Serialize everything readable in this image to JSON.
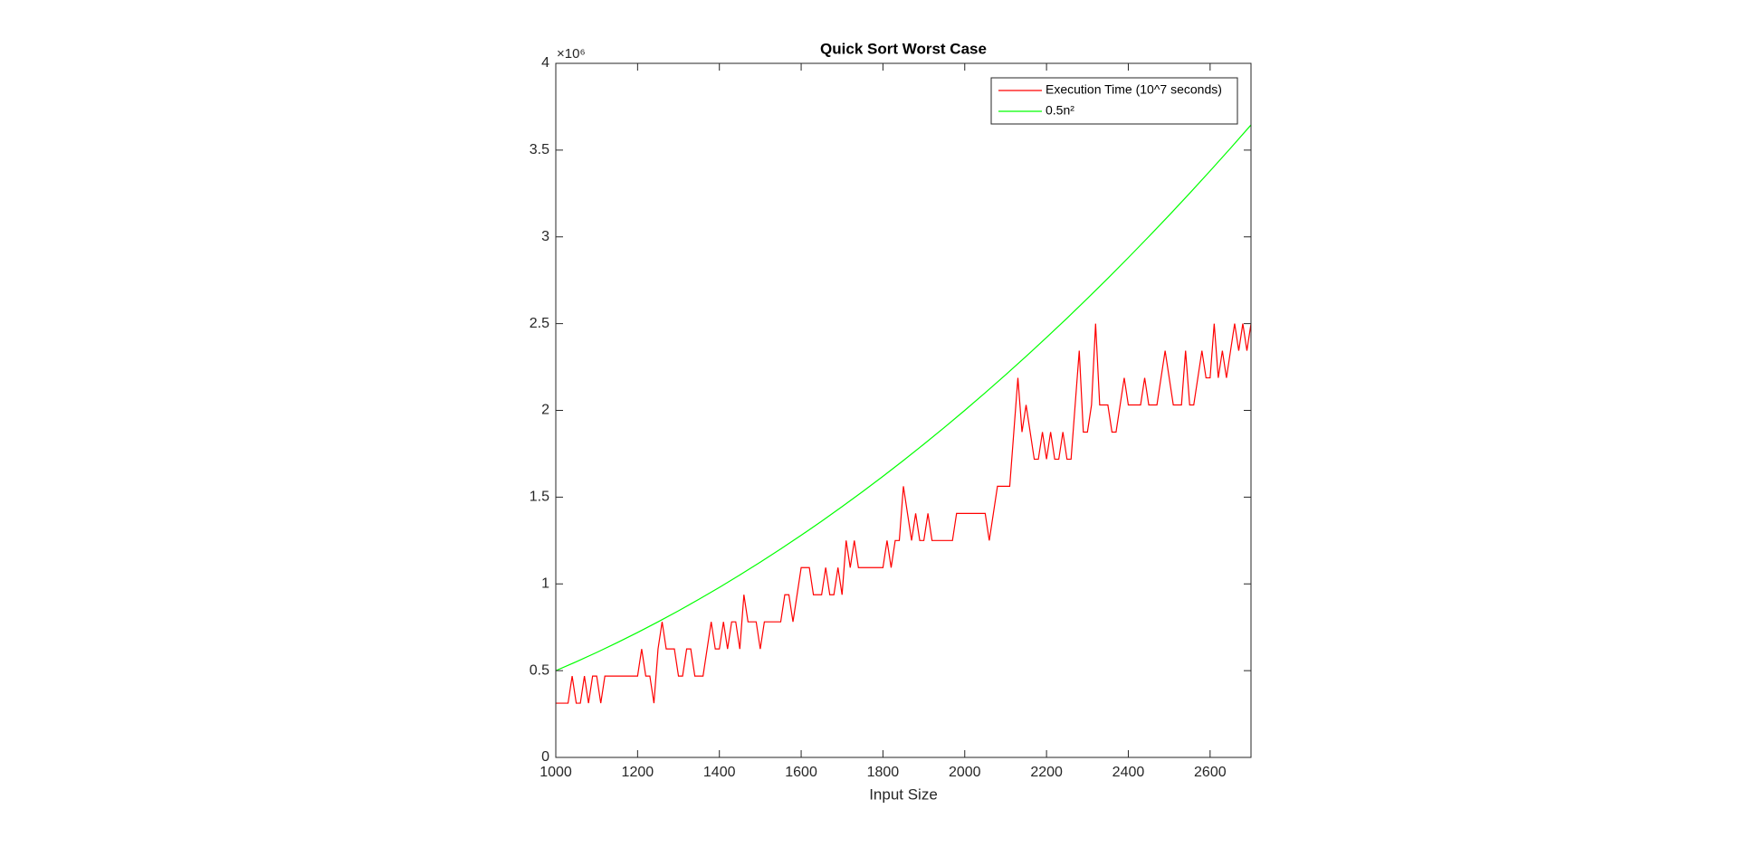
{
  "chart_data": {
    "type": "line",
    "title": "Quick Sort Worst Case",
    "xlabel": "Input Size",
    "y_exponent_label": "×10⁶",
    "xlim": [
      1000,
      2700
    ],
    "ylim": [
      0,
      4000000
    ],
    "xticks": [
      1000,
      1200,
      1400,
      1600,
      1800,
      2000,
      2200,
      2400,
      2600
    ],
    "yticks": [
      0,
      {
        "value": 500000,
        "label": "0.5"
      },
      {
        "value": 1000000,
        "label": "1"
      },
      {
        "value": 1500000,
        "label": "1.5"
      },
      {
        "value": 2000000,
        "label": "2"
      },
      {
        "value": 2500000,
        "label": "2.5"
      },
      {
        "value": 3000000,
        "label": "3"
      },
      {
        "value": 3500000,
        "label": "3.5"
      },
      {
        "value": 4000000,
        "label": "4"
      }
    ],
    "grid": false,
    "legend": "upper right",
    "series": [
      {
        "name": "Execution Time (10^7 seconds)",
        "color": "#ff0000",
        "x": [
          1000,
          1010,
          1020,
          1030,
          1040,
          1050,
          1060,
          1070,
          1080,
          1090,
          1100,
          1110,
          1120,
          1130,
          1140,
          1150,
          1160,
          1170,
          1180,
          1190,
          1200,
          1210,
          1220,
          1230,
          1240,
          1250,
          1260,
          1270,
          1280,
          1290,
          1300,
          1310,
          1320,
          1330,
          1340,
          1350,
          1360,
          1370,
          1380,
          1390,
          1400,
          1410,
          1420,
          1430,
          1440,
          1450,
          1460,
          1470,
          1480,
          1490,
          1500,
          1510,
          1520,
          1530,
          1540,
          1550,
          1560,
          1570,
          1580,
          1590,
          1600,
          1610,
          1620,
          1630,
          1640,
          1650,
          1660,
          1670,
          1680,
          1690,
          1700,
          1710,
          1720,
          1730,
          1740,
          1750,
          1760,
          1770,
          1780,
          1790,
          1800,
          1810,
          1820,
          1830,
          1840,
          1850,
          1860,
          1870,
          1880,
          1890,
          1900,
          1910,
          1920,
          1930,
          1940,
          1950,
          1960,
          1970,
          1980,
          1990,
          2000,
          2010,
          2020,
          2030,
          2040,
          2050,
          2060,
          2070,
          2080,
          2090,
          2100,
          2110,
          2120,
          2130,
          2140,
          2150,
          2160,
          2170,
          2180,
          2190,
          2200,
          2210,
          2220,
          2230,
          2240,
          2250,
          2260,
          2270,
          2280,
          2290,
          2300,
          2310,
          2320,
          2330,
          2340,
          2350,
          2360,
          2370,
          2380,
          2390,
          2400,
          2410,
          2420,
          2430,
          2440,
          2450,
          2460,
          2470,
          2480,
          2490,
          2500,
          2510,
          2520,
          2530,
          2540,
          2550,
          2560,
          2570,
          2580,
          2590,
          2600,
          2610,
          2620,
          2630,
          2640,
          2650,
          2660,
          2670,
          2680,
          2690,
          2700
        ],
        "values": [
          312500,
          312500,
          312500,
          312500,
          468750,
          312500,
          312500,
          468750,
          312500,
          468750,
          468750,
          312500,
          468750,
          468750,
          468750,
          468750,
          468750,
          468750,
          468750,
          468750,
          468750,
          625000,
          468750,
          468750,
          312500,
          625000,
          781250,
          625000,
          625000,
          625000,
          468750,
          468750,
          625000,
          625000,
          468750,
          468750,
          468750,
          625000,
          781250,
          625000,
          625000,
          781250,
          625000,
          781250,
          781250,
          625000,
          937500,
          781250,
          781250,
          781250,
          625000,
          781250,
          781250,
          781250,
          781250,
          781250,
          937500,
          937500,
          781250,
          937500,
          1093750,
          1093750,
          1093750,
          937500,
          937500,
          937500,
          1093750,
          937500,
          937500,
          1093750,
          937500,
          1250000,
          1093750,
          1250000,
          1093750,
          1093750,
          1093750,
          1093750,
          1093750,
          1093750,
          1093750,
          1250000,
          1093750,
          1250000,
          1250000,
          1562500,
          1406250,
          1250000,
          1406250,
          1250000,
          1250000,
          1406250,
          1250000,
          1250000,
          1250000,
          1250000,
          1250000,
          1250000,
          1406250,
          1406250,
          1406250,
          1406250,
          1406250,
          1406250,
          1406250,
          1406250,
          1250000,
          1406250,
          1562500,
          1562500,
          1562500,
          1562500,
          1875000,
          2187500,
          1875000,
          2031250,
          1875000,
          1718750,
          1718750,
          1875000,
          1718750,
          1875000,
          1718750,
          1718750,
          1875000,
          1718750,
          1718750,
          2031250,
          2343750,
          1875000,
          1875000,
          2031250,
          2500000,
          2031250,
          2031250,
          2031250,
          1875000,
          1875000,
          2031250,
          2187500,
          2031250,
          2031250,
          2031250,
          2031250,
          2187500,
          2031250,
          2031250,
          2031250,
          2187500,
          2343750,
          2187500,
          2031250,
          2031250,
          2031250,
          2343750,
          2031250,
          2031250,
          2187500,
          2343750,
          2187500,
          2187500,
          2500000,
          2187500,
          2343750,
          2187500,
          2343750,
          2500000,
          2343750,
          2500000,
          2343750,
          2500000
        ]
      },
      {
        "name": "0.5n²",
        "color": "#00ff00",
        "x": [
          1000,
          1050,
          1100,
          1150,
          1200,
          1250,
          1300,
          1350,
          1400,
          1450,
          1500,
          1550,
          1600,
          1650,
          1700,
          1750,
          1800,
          1850,
          1900,
          1950,
          2000,
          2050,
          2100,
          2150,
          2200,
          2250,
          2300,
          2350,
          2400,
          2450,
          2500,
          2550,
          2600,
          2650,
          2700
        ],
        "values": [
          500000,
          551250,
          605000,
          661250,
          720000,
          781250,
          845000,
          911250,
          980000,
          1051250,
          1125000,
          1201250,
          1280000,
          1361250,
          1445000,
          1531250,
          1620000,
          1711250,
          1805000,
          1901250,
          2000000,
          2101250,
          2205000,
          2311250,
          2420000,
          2531250,
          2645000,
          2761250,
          2880000,
          3001250,
          3125000,
          3251250,
          3380000,
          3511250,
          3645000
        ]
      }
    ]
  }
}
